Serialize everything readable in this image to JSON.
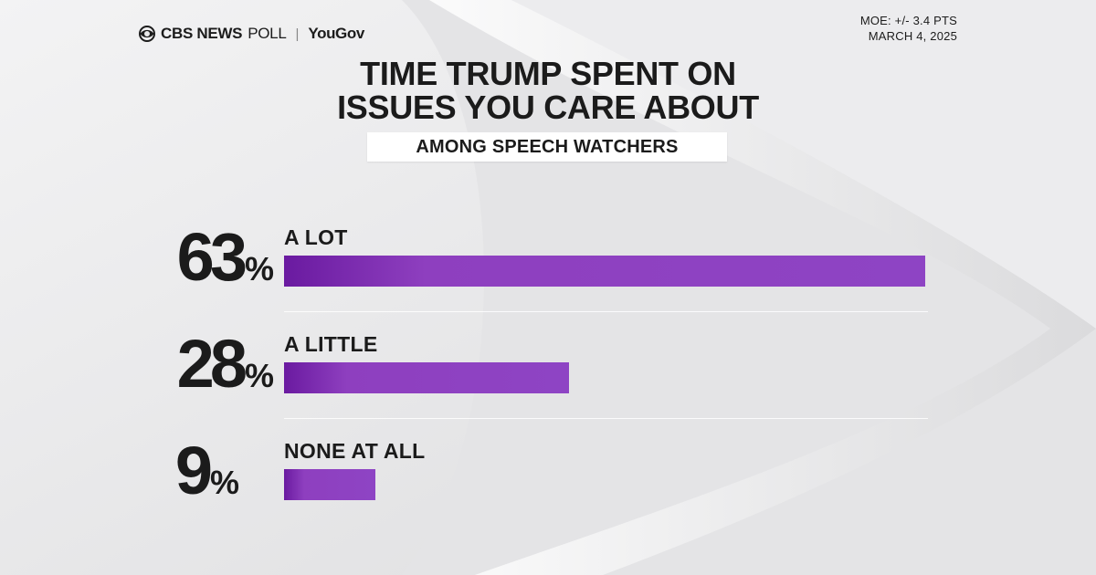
{
  "header": {
    "brand_cbs": "CBS NEWS",
    "brand_poll": "POLL",
    "brand_separator": "|",
    "brand_yougov": "YouGov",
    "moe": "MOE: +/- 3.4 PTS",
    "date": "MARCH 4, 2025"
  },
  "chart_data": {
    "type": "bar",
    "orientation": "horizontal",
    "title_lines": [
      "TIME TRUMP SPENT ON",
      "ISSUES YOU CARE ABOUT"
    ],
    "subtitle": "AMONG SPEECH WATCHERS",
    "categories": [
      "A LOT",
      "A LITTLE",
      "NONE AT ALL"
    ],
    "values": [
      63,
      28,
      9
    ],
    "unit": "%",
    "xlim": [
      0,
      63
    ],
    "grid": false,
    "bar_color": "#8e44c4"
  }
}
